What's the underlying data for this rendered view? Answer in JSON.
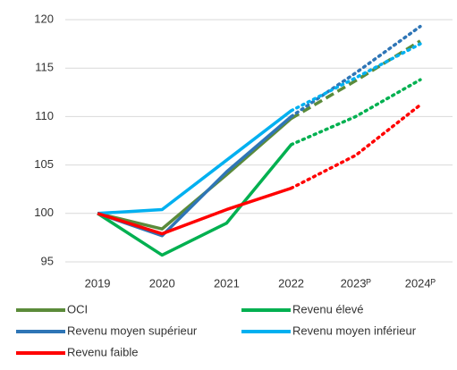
{
  "chart_data": {
    "type": "line",
    "categories": [
      "2019",
      "2020",
      "2021",
      "2022",
      "2023ᴾ",
      "2024ᴾ"
    ],
    "projection_from": "2022",
    "series": [
      {
        "name": "OCI",
        "color": "#5b8b3a",
        "projected_style": "dashed",
        "values": [
          100,
          98.4,
          104,
          109.8,
          113.7,
          117.8
        ]
      },
      {
        "name": "Revenu élevé",
        "color": "#00b050",
        "projected_style": "dotted",
        "values": [
          100,
          95.7,
          99,
          107.1,
          110,
          113.8
        ]
      },
      {
        "name": "Revenu moyen supérieur",
        "color": "#2e75b6",
        "projected_style": "dotted",
        "values": [
          100,
          97.7,
          104.3,
          110,
          114.5,
          119.3
        ]
      },
      {
        "name": "Revenu moyen inférieur",
        "color": "#00b0f0",
        "projected_style": "dotted",
        "values": [
          100,
          100.4,
          105.5,
          110.6,
          114,
          117.5
        ]
      },
      {
        "name": "Revenu faible",
        "color": "#ff0000",
        "projected_style": "dotted",
        "values": [
          100,
          97.9,
          100.4,
          102.6,
          106,
          111.2
        ]
      }
    ],
    "ylim": [
      95,
      120
    ],
    "yticks": [
      95,
      100,
      105,
      110,
      115,
      120
    ],
    "grid": true
  }
}
